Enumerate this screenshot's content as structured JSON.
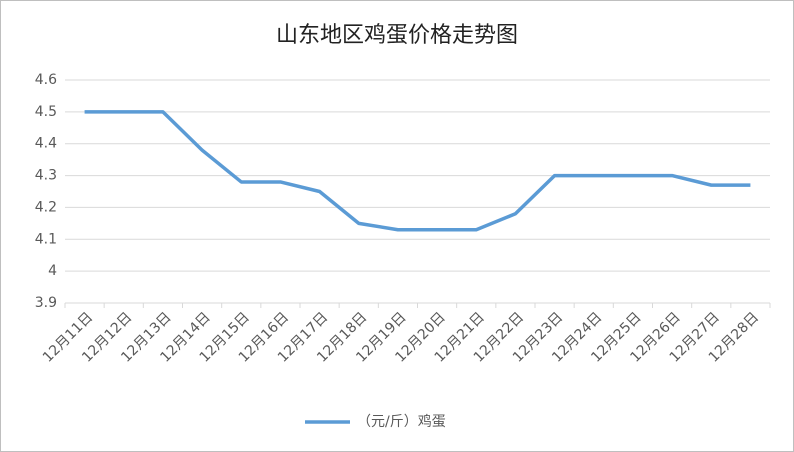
{
  "chart_data": {
    "type": "line",
    "title": "山东地区鸡蛋价格走势图",
    "categories": [
      "12月11日",
      "12月12日",
      "12月13日",
      "12月14日",
      "12月15日",
      "12月16日",
      "12月17日",
      "12月18日",
      "12月19日",
      "12月20日",
      "12月21日",
      "12月22日",
      "12月23日",
      "12月24日",
      "12月25日",
      "12月26日",
      "12月27日",
      "12月28日"
    ],
    "series": [
      {
        "name": "（元/斤）鸡蛋",
        "color": "#5b9bd5",
        "values": [
          4.5,
          4.5,
          4.5,
          4.38,
          4.28,
          4.28,
          4.25,
          4.15,
          4.13,
          4.13,
          4.13,
          4.18,
          4.3,
          4.3,
          4.3,
          4.3,
          4.27,
          4.27
        ]
      }
    ],
    "ylim": [
      3.9,
      4.6
    ],
    "yticks": [
      3.9,
      4,
      4.1,
      4.2,
      4.3,
      4.4,
      4.5,
      4.6
    ],
    "grid": true,
    "legend": "bottom"
  }
}
